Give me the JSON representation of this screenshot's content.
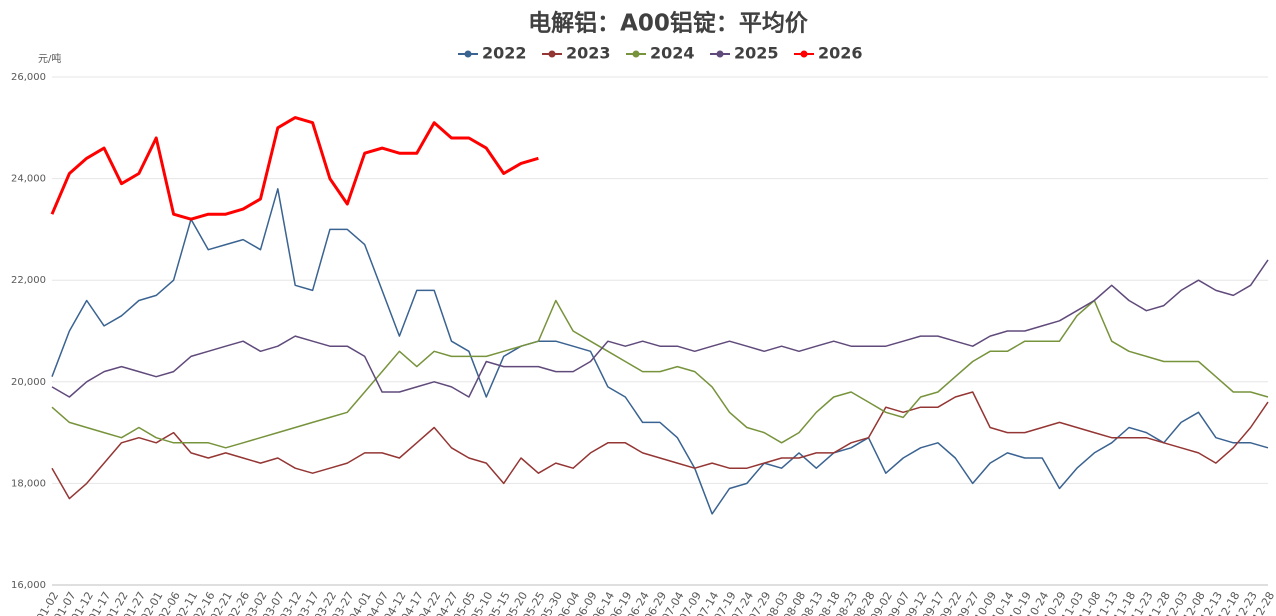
{
  "chart_data": {
    "type": "line",
    "title": "电解铝：A00铝锭：平均价",
    "y_unit": "元/吨",
    "categories": [
      "01-02",
      "01-07",
      "01-12",
      "01-17",
      "01-22",
      "01-27",
      "02-01",
      "02-06",
      "02-11",
      "02-16",
      "02-21",
      "02-26",
      "03-02",
      "03-07",
      "03-12",
      "03-17",
      "03-22",
      "03-27",
      "04-01",
      "04-07",
      "04-12",
      "04-17",
      "04-22",
      "04-27",
      "05-05",
      "05-10",
      "05-15",
      "05-20",
      "05-25",
      "05-30",
      "06-04",
      "06-09",
      "06-14",
      "06-19",
      "06-24",
      "06-29",
      "07-04",
      "07-09",
      "07-14",
      "07-19",
      "07-24",
      "07-29",
      "08-03",
      "08-08",
      "08-13",
      "08-18",
      "08-23",
      "08-28",
      "09-02",
      "09-07",
      "09-12",
      "09-17",
      "09-22",
      "09-27",
      "10-09",
      "10-14",
      "10-19",
      "10-24",
      "10-29",
      "11-03",
      "11-08",
      "11-13",
      "11-18",
      "11-23",
      "11-28",
      "12-03",
      "12-08",
      "12-13",
      "12-18",
      "12-23",
      "12-28"
    ],
    "series": [
      {
        "name": "2022",
        "color": "#3a6391",
        "values": [
          20100,
          21000,
          21600,
          21100,
          21300,
          21600,
          21700,
          22000,
          23200,
          22600,
          22700,
          22800,
          22600,
          23800,
          21900,
          21800,
          23000,
          23000,
          22700,
          21800,
          20900,
          21800,
          21800,
          20800,
          20600,
          19700,
          20500,
          20700,
          20800,
          20800,
          20700,
          20600,
          19900,
          19700,
          19200,
          19200,
          18900,
          18300,
          17400,
          17900,
          18000,
          18400,
          18300,
          18600,
          18300,
          18600,
          18700,
          18900,
          18200,
          18500,
          18700,
          18800,
          18500,
          18000,
          18400,
          18600,
          18500,
          18500,
          17900,
          18300,
          18600,
          18800,
          19100,
          19000,
          18800,
          19200,
          19400,
          18900,
          18800,
          18800,
          18700
        ]
      },
      {
        "name": "2023",
        "color": "#943634",
        "values": [
          18300,
          17700,
          18000,
          18400,
          18800,
          18900,
          18800,
          19000,
          18600,
          18500,
          18600,
          18500,
          18400,
          18500,
          18300,
          18200,
          18300,
          18400,
          18600,
          18600,
          18500,
          18800,
          19100,
          18700,
          18500,
          18400,
          18000,
          18500,
          18200,
          18400,
          18300,
          18600,
          18800,
          18800,
          18600,
          18500,
          18400,
          18300,
          18400,
          18300,
          18300,
          18400,
          18500,
          18500,
          18600,
          18600,
          18800,
          18900,
          19500,
          19400,
          19500,
          19500,
          19700,
          19800,
          19100,
          19000,
          19000,
          19100,
          19200,
          19100,
          19000,
          18900,
          18900,
          18900,
          18800,
          18700,
          18600,
          18400,
          18700,
          19100,
          19600
        ]
      },
      {
        "name": "2024",
        "color": "#77933c",
        "values": [
          19500,
          19200,
          19100,
          19000,
          18900,
          19100,
          18900,
          18800,
          18800,
          18800,
          18700,
          18800,
          18900,
          19000,
          19100,
          19200,
          19300,
          19400,
          19800,
          20200,
          20600,
          20300,
          20600,
          20500,
          20500,
          20500,
          20600,
          20700,
          20800,
          21600,
          21000,
          20800,
          20600,
          20400,
          20200,
          20200,
          20300,
          20200,
          19900,
          19400,
          19100,
          19000,
          18800,
          19000,
          19400,
          19700,
          19800,
          19600,
          19400,
          19300,
          19700,
          19800,
          20100,
          20400,
          20600,
          20600,
          20800,
          20800,
          20800,
          21300,
          21600,
          20800,
          20600,
          20500,
          20400,
          20400,
          20400,
          20100,
          19800,
          19800,
          19700
        ]
      },
      {
        "name": "2025",
        "color": "#604a7b",
        "values": [
          19900,
          19700,
          20000,
          20200,
          20300,
          20200,
          20100,
          20200,
          20500,
          20600,
          20700,
          20800,
          20600,
          20700,
          20900,
          20800,
          20700,
          20700,
          20500,
          19800,
          19800,
          19900,
          20000,
          19900,
          19700,
          20400,
          20300,
          20300,
          20300,
          20200,
          20200,
          20400,
          20800,
          20700,
          20800,
          20700,
          20700,
          20600,
          20700,
          20800,
          20700,
          20600,
          20700,
          20600,
          20700,
          20800,
          20700,
          20700,
          20700,
          20800,
          20900,
          20900,
          20800,
          20700,
          20900,
          21000,
          21000,
          21100,
          21200,
          21400,
          21600,
          21900,
          21600,
          21400,
          21500,
          21800,
          22000,
          21800,
          21700,
          21900,
          22400
        ]
      },
      {
        "name": "2026",
        "color": "#ff0000",
        "values": [
          23300,
          24100,
          24400,
          24600,
          23900,
          24100,
          24800,
          23300,
          23200,
          23300,
          23300,
          23400,
          23600,
          25000,
          25200,
          25100,
          24000,
          23500,
          24500,
          24600,
          24500,
          24500,
          25100,
          24800,
          24800,
          24600,
          24100,
          24300,
          24400,
          null,
          null,
          null,
          null,
          null,
          null,
          null,
          null,
          null,
          null,
          null,
          null,
          null,
          null,
          null,
          null,
          null,
          null,
          null,
          null,
          null,
          null,
          null,
          null,
          null,
          null,
          null,
          null,
          null,
          null,
          null,
          null,
          null,
          null,
          null,
          null,
          null,
          null,
          null,
          null,
          null,
          null
        ]
      }
    ],
    "ylim": [
      16000,
      26000
    ],
    "yticks": [
      {
        "value": 16000,
        "label": "16,000"
      },
      {
        "value": 18000,
        "label": "18,000"
      },
      {
        "value": 20000,
        "label": "20,000"
      },
      {
        "value": 22000,
        "label": "22,000"
      },
      {
        "value": 24000,
        "label": "24,000"
      },
      {
        "value": 26000,
        "label": "26,000"
      }
    ],
    "grid": true,
    "legend": "top"
  }
}
